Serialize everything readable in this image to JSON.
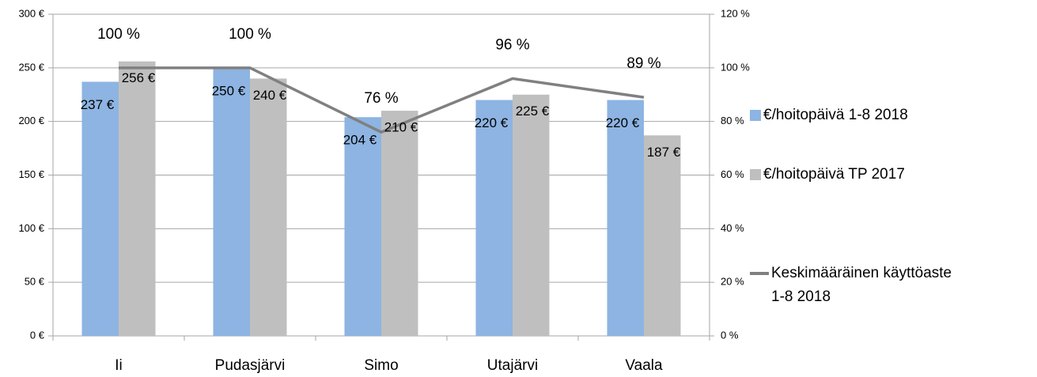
{
  "chart_data": {
    "type": "bar",
    "categories": [
      "Ii",
      "Pudasjärvi",
      "Simo",
      "Utajärvi",
      "Vaala"
    ],
    "series": [
      {
        "name": "€/hoitopäivä 1-8 2018",
        "color": "#8db4e2",
        "values": [
          237,
          250,
          204,
          220,
          220
        ],
        "value_labels": [
          "237 €",
          "250 €",
          "204 €",
          "220 €",
          "220 €"
        ]
      },
      {
        "name": "€/hoitopäivä TP 2017",
        "color": "#bfbfbf",
        "values": [
          256,
          240,
          210,
          225,
          187
        ],
        "value_labels": [
          "256 €",
          "240 €",
          "210 €",
          "225 €",
          "187 €"
        ]
      },
      {
        "name": "Keskimääräinen käyttöaste 1-8 2018",
        "type": "line",
        "axis": "y2",
        "color": "#808080",
        "values": [
          100,
          100,
          76,
          96,
          89
        ],
        "value_labels": [
          "100 %",
          "100 %",
          "76 %",
          "96 %",
          "89 %"
        ]
      }
    ],
    "ylim": [
      0,
      300
    ],
    "yticks": [
      {
        "value": 0,
        "label": "0 €"
      },
      {
        "value": 50,
        "label": "50 €"
      },
      {
        "value": 100,
        "label": "100 €"
      },
      {
        "value": 150,
        "label": "150 €"
      },
      {
        "value": 200,
        "label": "200 €"
      },
      {
        "value": 250,
        "label": "250 €"
      },
      {
        "value": 300,
        "label": "300 €"
      }
    ],
    "y2lim": [
      0,
      120
    ],
    "y2ticks": [
      {
        "value": 0,
        "label": "0 %"
      },
      {
        "value": 20,
        "label": "20 %"
      },
      {
        "value": 40,
        "label": "40 %"
      },
      {
        "value": 60,
        "label": "60 %"
      },
      {
        "value": 80,
        "label": "80 %"
      },
      {
        "value": 100,
        "label": "100 %"
      },
      {
        "value": 120,
        "label": "120 %"
      }
    ],
    "grid": true,
    "legend": "right"
  }
}
